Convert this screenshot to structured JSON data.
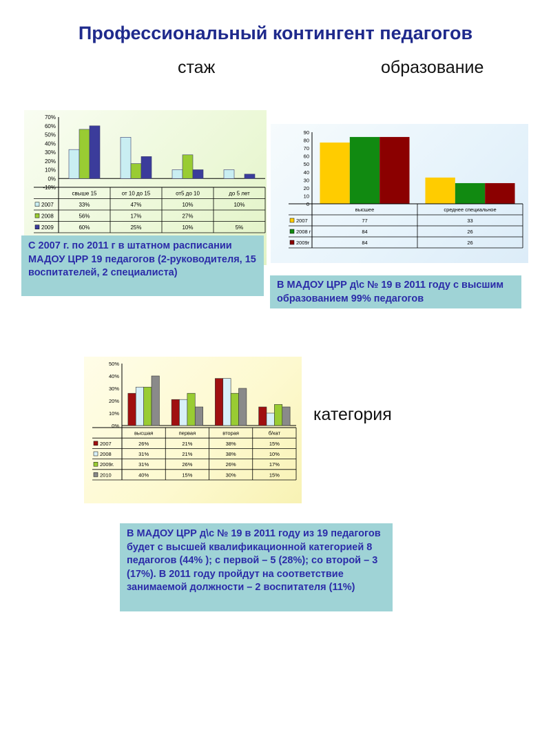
{
  "title": "Профессиональный контингент педагогов",
  "labels": {
    "stazh": "стаж",
    "obrazovanie": "образование",
    "kategoriya": "категория"
  },
  "notes": {
    "stazh": "С 2007 г. по 2011 г в штатном расписании МАДОУ ЦРР  19 педагогов (2-руководителя, 15 воспитателей, 2 специалиста)",
    "obrazovanie": "В МАДОУ ЦРР д\\с № 19 в 2011 году с высшим образованием  99% педагогов",
    "kategoriya": "В МАДОУ ЦРР д\\с № 19 в 2011 году из 19 педагогов будет  с высшей квалификационной категорией 8 педагогов (44% ); с  первой – 5 (28%); со второй – 3 (17%). В 2011 году пройдут на соответствие занимаемой должности – 2 воспитателя (11%)"
  },
  "chart_data": [
    {
      "type": "bar",
      "categories": [
        "свыше 15",
        "от 10 до 15",
        "от5 до 10",
        "до 5 лет"
      ],
      "ylim": [
        -10,
        70
      ],
      "yticks": [
        "70%",
        "60%",
        "50%",
        "40%",
        "30%",
        "20%",
        "10%",
        "0%",
        "-10%"
      ],
      "grid": false,
      "legend": "table",
      "series": [
        {
          "name": "2007",
          "color": "#c9eef2",
          "values": [
            33,
            47,
            10,
            10
          ],
          "labels": [
            "33%",
            "47%",
            "10%",
            "10%"
          ]
        },
        {
          "name": "2008",
          "color": "#99cc33",
          "values": [
            56,
            17,
            27,
            null
          ],
          "labels": [
            "56%",
            "17%",
            "27%",
            ""
          ]
        },
        {
          "name": "2009",
          "color": "#3b3c9b",
          "values": [
            60,
            25,
            10,
            5
          ],
          "labels": [
            "60%",
            "25%",
            "10%",
            "5%"
          ]
        }
      ]
    },
    {
      "type": "bar",
      "categories": [
        "высшее",
        "среднее специальное"
      ],
      "ylim": [
        0,
        90
      ],
      "yticks": [
        "90",
        "80",
        "70",
        "60",
        "50",
        "40",
        "30",
        "20",
        "10",
        "0"
      ],
      "grid": false,
      "legend": "table",
      "series": [
        {
          "name": "2007",
          "color": "#ffcc00",
          "values": [
            77,
            33
          ],
          "labels": [
            "77",
            "33"
          ]
        },
        {
          "name": "2008 г",
          "color": "#118a11",
          "values": [
            84,
            26
          ],
          "labels": [
            "84",
            "26"
          ]
        },
        {
          "name": "2009г",
          "color": "#8b0000",
          "values": [
            84,
            26
          ],
          "labels": [
            "84",
            "26"
          ]
        }
      ]
    },
    {
      "type": "bar",
      "categories": [
        "высшая",
        "первая",
        "вторая",
        "б/кат"
      ],
      "ylim": [
        0,
        50
      ],
      "yticks": [
        "50%",
        "40%",
        "30%",
        "20%",
        "10%",
        "0%"
      ],
      "grid": false,
      "legend": "table",
      "series": [
        {
          "name": "2007",
          "color": "#a01010",
          "values": [
            26,
            21,
            38,
            15
          ],
          "labels": [
            "26%",
            "21%",
            "38%",
            "15%"
          ]
        },
        {
          "name": "2008",
          "color": "#d8f0f8",
          "values": [
            31,
            21,
            38,
            10
          ],
          "labels": [
            "31%",
            "21%",
            "38%",
            "10%"
          ]
        },
        {
          "name": "2009г.",
          "color": "#99cc33",
          "values": [
            31,
            26,
            26,
            17
          ],
          "labels": [
            "31%",
            "26%",
            "26%",
            "17%"
          ]
        },
        {
          "name": "2010",
          "color": "#8a8a8a",
          "values": [
            40,
            15,
            30,
            15
          ],
          "labels": [
            "40%",
            "15%",
            "30%",
            "15%"
          ]
        }
      ]
    }
  ]
}
